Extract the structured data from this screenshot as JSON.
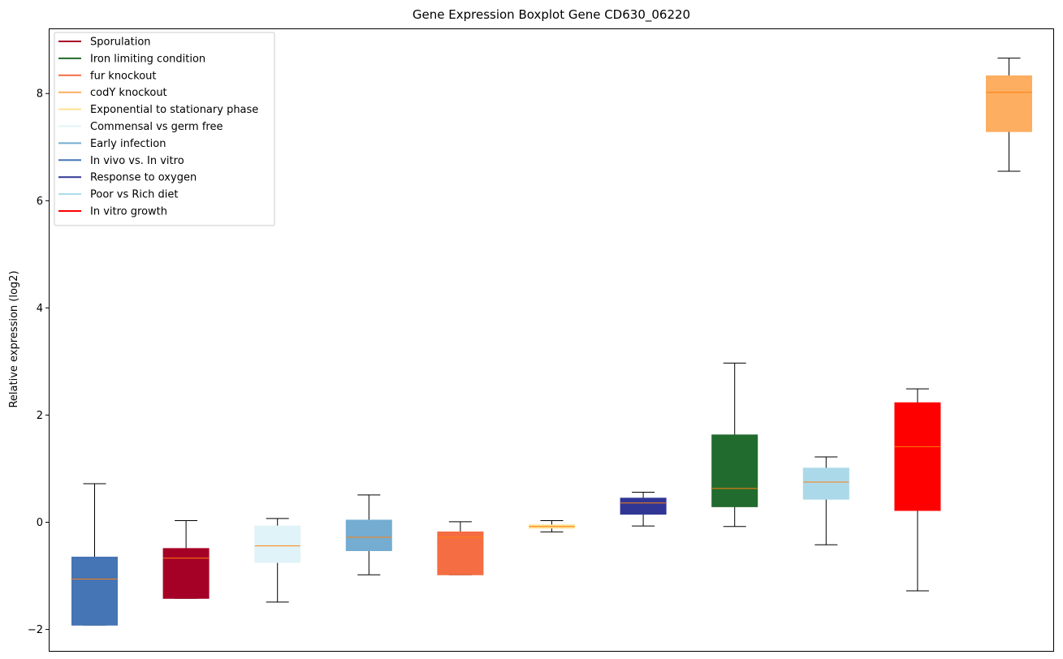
{
  "chart_data": {
    "type": "boxplot",
    "title": "Gene Expression Boxplot Gene CD630_06220",
    "xlabel": "",
    "ylabel": "Relative expression (log2)",
    "ylim": [
      -2.4,
      9.2
    ],
    "yticks": [
      -2,
      0,
      2,
      4,
      6,
      8
    ],
    "ytick_labels": [
      "−2",
      "0",
      "2",
      "4",
      "6",
      "8"
    ],
    "legend": {
      "placement": "top-left",
      "entries": [
        {
          "label": "Sporulation",
          "color": "#a50026"
        },
        {
          "label": "Iron limiting condition",
          "color": "#226b2e"
        },
        {
          "label": "fur knockout",
          "color": "#f46d43"
        },
        {
          "label": "codY knockout",
          "color": "#fdae61"
        },
        {
          "label": "Exponential to stationary phase",
          "color": "#fee090"
        },
        {
          "label": "Commensal vs germ free",
          "color": "#e0f3f8"
        },
        {
          "label": "Early infection",
          "color": "#74add1"
        },
        {
          "label": "In vivo vs. In vitro",
          "color": "#4575b4"
        },
        {
          "label": "Response to oxygen",
          "color": "#313695"
        },
        {
          "label": "Poor vs Rich diet",
          "color": "#abd9e9"
        },
        {
          "label": "In vitro growth",
          "color": "#ff0000"
        }
      ]
    },
    "median_color": "#ff7f0e",
    "boxes": [
      {
        "group": "In vivo vs. In vitro",
        "color": "#4575b4",
        "whisker_low": -1.92,
        "q1": -1.92,
        "median": -1.06,
        "q3": -0.65,
        "whisker_high": 0.72
      },
      {
        "group": "Sporulation",
        "color": "#a50026",
        "whisker_low": -1.42,
        "q1": -1.42,
        "median": -0.67,
        "q3": -0.49,
        "whisker_high": 0.03
      },
      {
        "group": "Commensal vs germ free",
        "color": "#e0f3f8",
        "whisker_low": -1.49,
        "q1": -0.75,
        "median": -0.44,
        "q3": -0.07,
        "whisker_high": 0.07
      },
      {
        "group": "Early infection",
        "color": "#74add1",
        "whisker_low": -0.98,
        "q1": -0.53,
        "median": -0.28,
        "q3": 0.04,
        "whisker_high": 0.51
      },
      {
        "group": "fur knockout",
        "color": "#f46d43",
        "whisker_low": -0.98,
        "q1": -0.98,
        "median": -0.28,
        "q3": -0.18,
        "whisker_high": 0.01
      },
      {
        "group": "Exponential to stationary phase",
        "color": "#fee090",
        "whisker_low": -0.18,
        "q1": -0.11,
        "median": -0.08,
        "q3": -0.05,
        "whisker_high": 0.03
      },
      {
        "group": "Response to oxygen",
        "color": "#313695",
        "whisker_low": -0.07,
        "q1": 0.15,
        "median": 0.36,
        "q3": 0.45,
        "whisker_high": 0.56
      },
      {
        "group": "Iron limiting condition",
        "color": "#226b2e",
        "whisker_low": -0.08,
        "q1": 0.29,
        "median": 0.63,
        "q3": 1.63,
        "whisker_high": 2.97
      },
      {
        "group": "Poor vs Rich diet",
        "color": "#abd9e9",
        "whisker_low": -0.42,
        "q1": 0.43,
        "median": 0.75,
        "q3": 1.01,
        "whisker_high": 1.22
      },
      {
        "group": "In vitro growth",
        "color": "#ff0000",
        "whisker_low": -1.28,
        "q1": 0.22,
        "median": 1.41,
        "q3": 2.23,
        "whisker_high": 2.49
      },
      {
        "group": "codY knockout",
        "color": "#fdae61",
        "whisker_low": 6.55,
        "q1": 7.29,
        "median": 8.02,
        "q3": 8.33,
        "whisker_high": 8.66
      }
    ]
  }
}
